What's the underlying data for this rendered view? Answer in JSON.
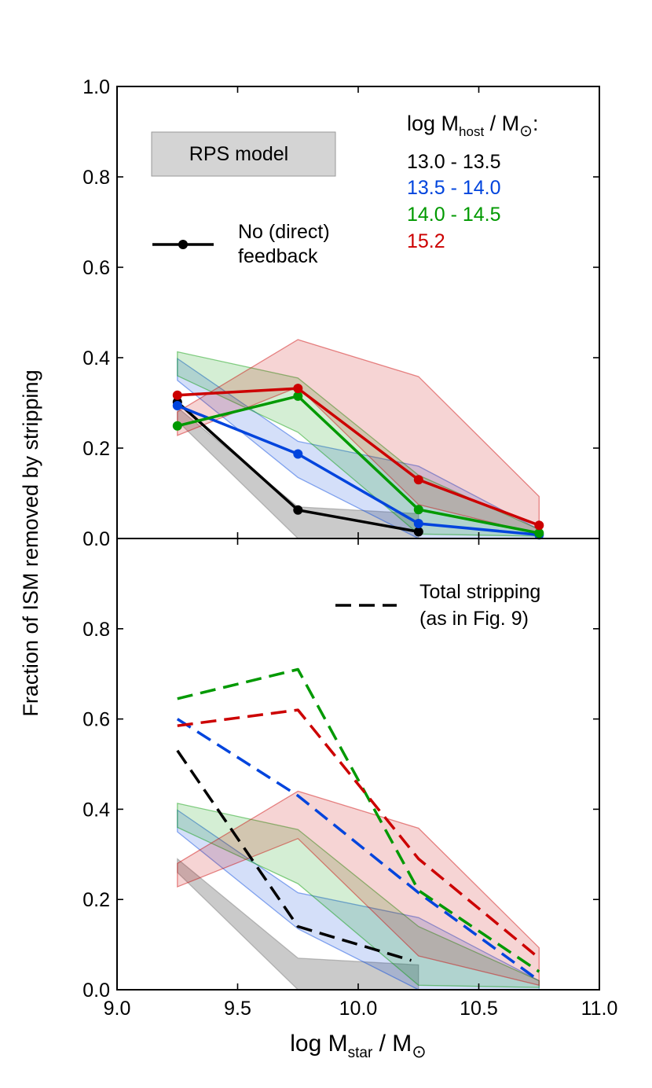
{
  "chart_data": [
    {
      "panel": "top",
      "type": "line",
      "xlim": [
        9.0,
        11.0
      ],
      "ylim": [
        0.0,
        1.0
      ],
      "xticks": [
        "9.0",
        "9.5",
        "10.0",
        "10.5",
        "11.0"
      ],
      "yticks": [
        "0.0",
        "0.2",
        "0.4",
        "0.6",
        "0.8",
        "1.0"
      ],
      "ylabel": "Fraction of ISM removed by stripping",
      "legend_title": "log M_host / M_⊙:",
      "legend_title_parts": {
        "main": "log M",
        "sub": "host",
        "tail": " / M",
        "sun": "⊙",
        "end": ":"
      },
      "rps_label": "RPS model",
      "line_label_1": "No (direct)",
      "line_label_2": "feedback",
      "series": [
        {
          "name": "13.0 - 13.5",
          "color": "#000000",
          "x": [
            9.25,
            9.75,
            10.25
          ],
          "y": [
            0.302,
            0.063,
            0.015
          ],
          "band_x": [
            9.25,
            9.75,
            10.25
          ],
          "band_low": [
            0.26,
            0.0,
            0.0
          ],
          "band_high": [
            0.29,
            0.07,
            0.055
          ]
        },
        {
          "name": "13.5 - 14.0",
          "color": "#0044dd",
          "x": [
            9.25,
            9.75,
            10.25,
            10.75
          ],
          "y": [
            0.294,
            0.187,
            0.033,
            0.008
          ],
          "band_x": [
            9.25,
            9.75,
            10.25,
            10.75
          ],
          "band_low": [
            0.35,
            0.135,
            0.0,
            0.0
          ],
          "band_high": [
            0.398,
            0.215,
            0.16,
            0.02
          ]
        },
        {
          "name": "14.0 - 14.5",
          "color": "#009900",
          "x": [
            9.25,
            9.75,
            10.25,
            10.75
          ],
          "y": [
            0.249,
            0.315,
            0.064,
            0.012
          ],
          "band_x": [
            9.25,
            9.75,
            10.25,
            10.75
          ],
          "band_low": [
            0.36,
            0.235,
            0.01,
            0.005
          ],
          "band_high": [
            0.413,
            0.355,
            0.14,
            0.02
          ]
        },
        {
          "name": "15.2",
          "color": "#cc0000",
          "x": [
            9.25,
            9.75,
            10.25,
            10.75
          ],
          "y": [
            0.317,
            0.332,
            0.13,
            0.029
          ],
          "band_x": [
            9.25,
            9.75,
            10.25,
            10.75
          ],
          "band_low": [
            0.228,
            0.335,
            0.075,
            0.01
          ],
          "band_high": [
            0.28,
            0.44,
            0.358,
            0.093
          ]
        }
      ]
    },
    {
      "panel": "bottom",
      "type": "line",
      "xlim": [
        9.0,
        11.0
      ],
      "ylim": [
        0.0,
        1.0
      ],
      "xticks": [
        "9.0",
        "9.5",
        "10.0",
        "10.5",
        "11.0"
      ],
      "yticks": [
        "0.0",
        "0.2",
        "0.4",
        "0.6",
        "0.8"
      ],
      "xlabel": "log M_star / M_⊙",
      "xlabel_parts": {
        "main": "log M",
        "sub": "star",
        "tail": " / M",
        "sun": "⊙"
      },
      "dashed_label_1": "Total stripping",
      "dashed_label_2": "(as in Fig. 9)",
      "series": [
        {
          "name": "13.0 - 13.5",
          "color": "#000000",
          "style": "dashed",
          "x": [
            9.25,
            9.75,
            10.22
          ],
          "y": [
            0.53,
            0.14,
            0.065
          ]
        },
        {
          "name": "13.5 - 14.0",
          "color": "#0044dd",
          "style": "dashed",
          "x": [
            9.25,
            9.75,
            10.25,
            10.75
          ],
          "y": [
            0.6,
            0.43,
            0.215,
            0.02
          ]
        },
        {
          "name": "14.0 - 14.5",
          "color": "#009900",
          "style": "dashed",
          "x": [
            9.25,
            9.75,
            10.25,
            10.75
          ],
          "y": [
            0.645,
            0.71,
            0.22,
            0.04
          ]
        },
        {
          "name": "15.2",
          "color": "#cc0000",
          "style": "dashed",
          "x": [
            9.25,
            9.75,
            10.25,
            10.75
          ],
          "y": [
            0.585,
            0.62,
            0.29,
            0.07
          ]
        }
      ]
    }
  ]
}
